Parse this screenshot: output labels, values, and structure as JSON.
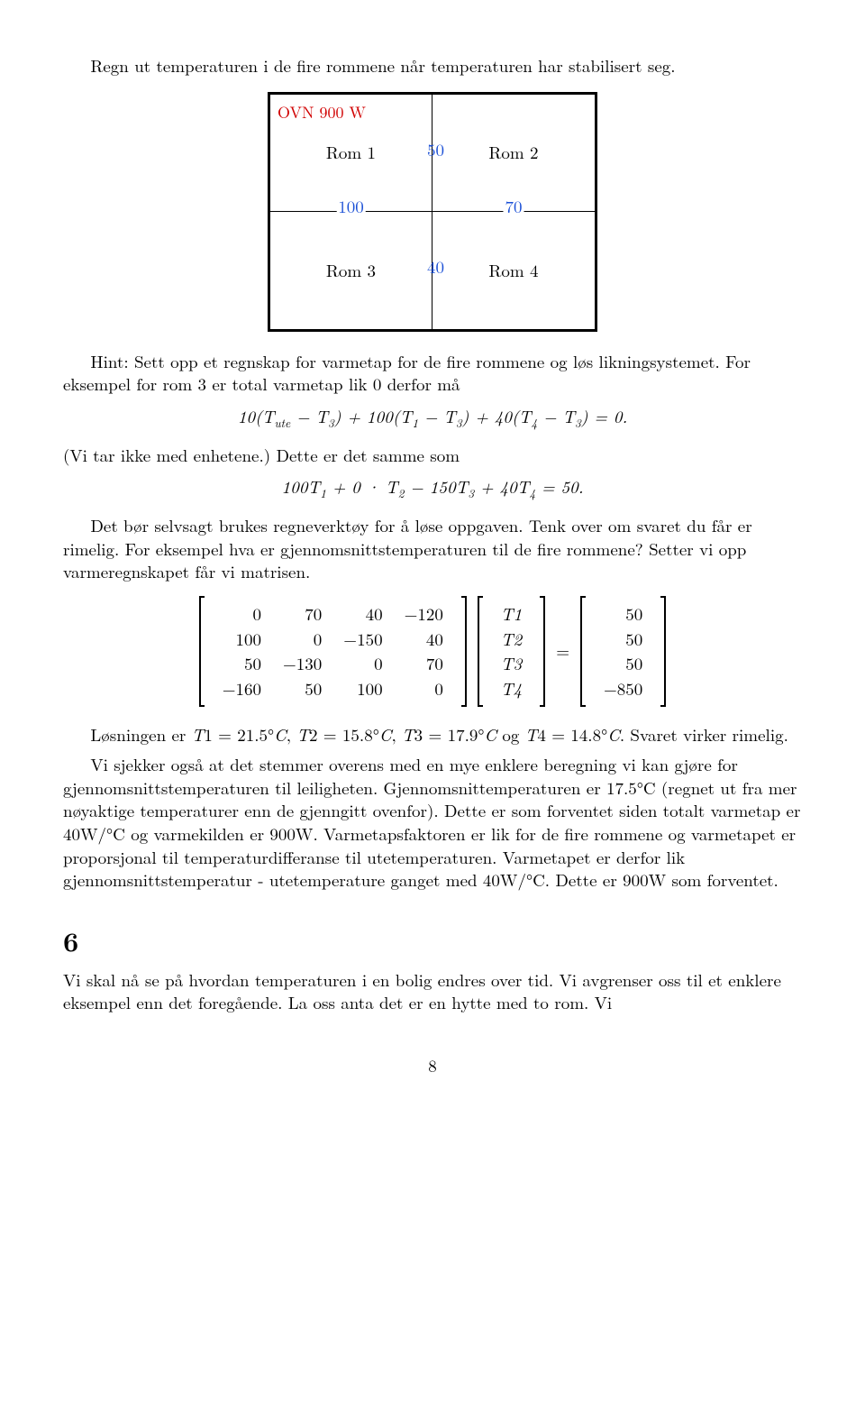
{
  "intro": "Regn ut temperaturen i de fire rommene når temperaturen har stabilisert seg.",
  "diagram": {
    "ovn": "OVN 900 W",
    "room1": "Rom 1",
    "room2": "Rom 2",
    "room3": "Rom 3",
    "room4": "Rom 4",
    "n50": "50",
    "n100": "100",
    "n70": "70",
    "n40": "40"
  },
  "hint": "Hint: Sett opp et regnskap for varmetap for de fire rommene og løs likningsystemet. For eksempel for rom 3 er total varmetap lik 0 derfor må",
  "eq1": "10(T_ute − T₃) + 100(T₁ − T₃) + 40(T₄ − T₃) = 0.",
  "para2": "(Vi tar ikke med enhetene.) Dette er det samme som",
  "eq2": "100T₁ + 0 · T₂ − 150T₃ + 40T₄ = 50.",
  "para3": "Det bør selvsagt brukes regneverktøy for å løse oppgaven. Tenk over om svaret du får er rimelig. For eksempel hva er gjennomsnittstemperaturen til de fire rommene? Setter vi opp varmeregnskapet får vi matrisen.",
  "matrixA": [
    [
      "0",
      "70",
      "40",
      "−120"
    ],
    [
      "100",
      "0",
      "−150",
      "40"
    ],
    [
      "50",
      "−130",
      "0",
      "70"
    ],
    [
      "−160",
      "50",
      "100",
      "0"
    ]
  ],
  "vecT": [
    "T1",
    "T2",
    "T3",
    "T4"
  ],
  "vecB": [
    "50",
    "50",
    "50",
    "−850"
  ],
  "eq_mid": "=",
  "sol": "Løsningen er T1 = 21.5°C, T2 = 15.8°C, T3 = 17.9°C og T4 = 14.8°C. Svaret virker rimelig.",
  "para4": "Vi sjekker også at det stemmer overens med en mye enklere beregning vi kan gjøre for gjennomsnittstemperaturen til leiligheten. Gjennomsnittemperaturen er 17.5°C (regnet ut fra mer nøyaktige temperaturer enn de gjenngitt ovenfor). Dette er som forventet siden totalt varmetap er 40W/°C og varmekilden er 900W. Varmetapsfaktoren er lik for de fire rommene og varmetapet er proporsjonal til temperaturdifferanse til utetemperaturen. Varmetapet er derfor lik gjennomsnittstemperatur - utetemperature ganget med 40W/°C. Dette er 900W som forventet.",
  "secnum": "6",
  "para5": "Vi skal nå se på hvordan temperaturen i en bolig endres over tid. Vi avgrenser oss til et enklere eksempel enn det foregående. La oss anta det er en hytte med to rom. Vi",
  "pagenum": "8"
}
